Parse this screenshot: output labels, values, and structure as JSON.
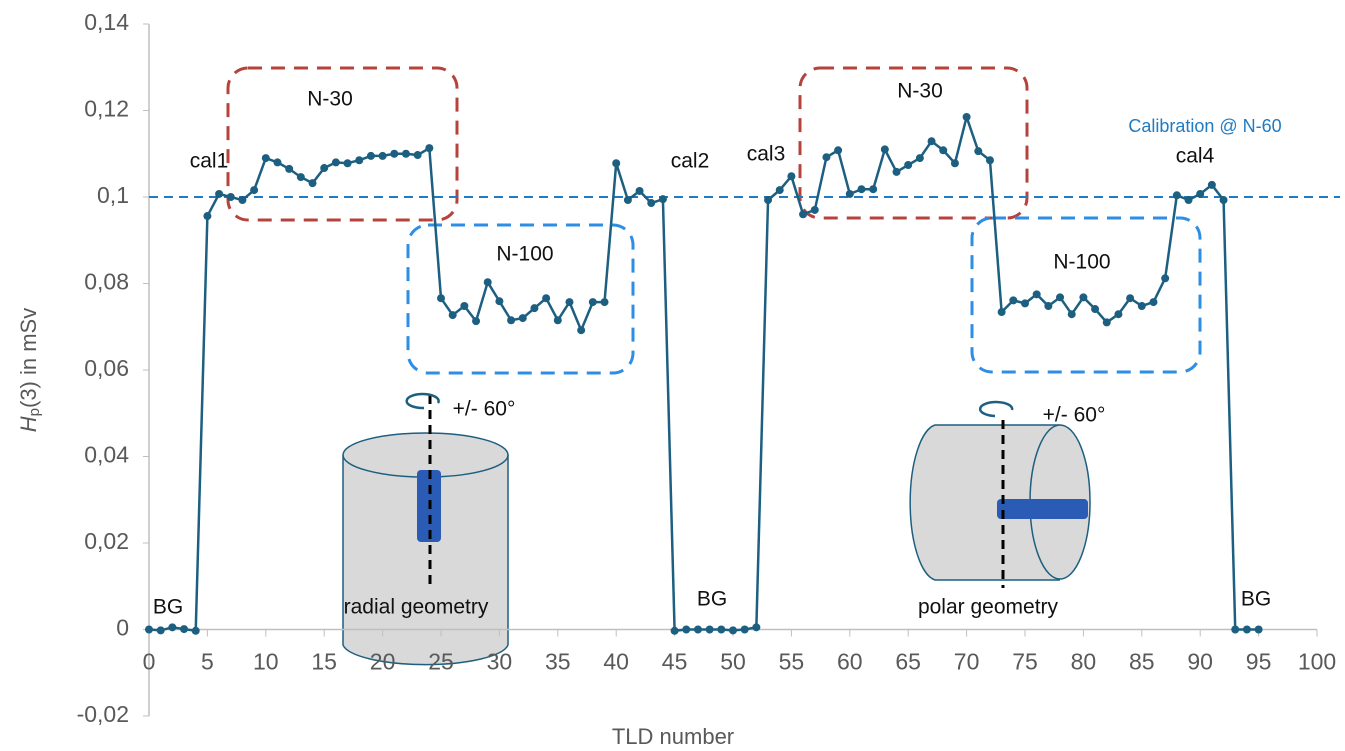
{
  "chart_data": {
    "type": "line",
    "xlabel": "TLD number",
    "ylabel_symbol": "H",
    "ylabel_subscript": "p",
    "ylabel": "(3) in mSv",
    "xlim": [
      0,
      100
    ],
    "xticks": [
      0,
      5,
      10,
      15,
      20,
      25,
      30,
      35,
      40,
      45,
      50,
      55,
      60,
      65,
      70,
      75,
      80,
      85,
      90,
      95,
      100
    ],
    "ylim": [
      -0.02,
      0.14
    ],
    "yticks": [
      {
        "value": -0.02,
        "label": "-0,02"
      },
      0,
      {
        "value": 0.02,
        "label": "0,02"
      },
      {
        "value": 0.04,
        "label": "0,04"
      },
      {
        "value": 0.06,
        "label": "0,06"
      },
      {
        "value": 0.08,
        "label": "0,08"
      },
      {
        "value": 0.1,
        "label": "0,1"
      },
      {
        "value": 0.12,
        "label": "0,12"
      },
      {
        "value": 0.14,
        "label": "0,14"
      }
    ],
    "grid": false,
    "series": [
      {
        "color": "#1d5f80",
        "x": [
          0,
          1,
          2,
          3,
          4,
          5,
          6,
          7,
          8,
          9,
          10,
          11,
          12,
          13,
          14,
          15,
          16,
          17,
          18,
          19,
          20,
          21,
          22,
          23,
          24,
          25,
          26,
          27,
          28,
          29,
          30,
          31,
          32,
          33,
          34,
          35,
          36,
          37,
          38,
          39,
          40,
          41,
          42,
          43,
          44,
          45,
          46,
          47,
          48,
          49,
          50,
          51,
          52,
          53,
          54,
          55,
          56,
          57,
          58,
          59,
          60,
          61,
          62,
          63,
          64,
          65,
          66,
          67,
          68,
          69,
          70,
          71,
          72,
          73,
          74,
          75,
          76,
          77,
          78,
          79,
          80,
          81,
          82,
          83,
          84,
          85,
          86,
          87,
          88,
          89,
          90,
          91,
          92,
          93,
          94,
          95
        ],
        "values": [
          0,
          -0.0002,
          0.0005,
          0.0001,
          -0.0003,
          0.0956,
          0.1007,
          0.1,
          0.0993,
          0.1016,
          0.109,
          0.108,
          0.1065,
          0.1046,
          0.1032,
          0.1067,
          0.108,
          0.1078,
          0.1085,
          0.1095,
          0.1095,
          0.11,
          0.11,
          0.1097,
          0.1113,
          0.0766,
          0.0727,
          0.0748,
          0.0713,
          0.0803,
          0.0759,
          0.0715,
          0.072,
          0.0743,
          0.0766,
          0.0715,
          0.0757,
          0.0692,
          0.0757,
          0.0757,
          0.1078,
          0.0993,
          0.1014,
          0.0986,
          0.0995,
          -0.0003,
          0,
          0,
          0,
          0,
          -0.0002,
          0,
          0.0005,
          0.0993,
          0.1016,
          0.1048,
          0.096,
          0.097,
          0.1092,
          0.1108,
          0.1007,
          0.1018,
          0.1018,
          0.111,
          0.1058,
          0.1074,
          0.109,
          0.1129,
          0.1108,
          0.1078,
          0.1185,
          0.1106,
          0.1085,
          0.0734,
          0.0761,
          0.0754,
          0.0775,
          0.0748,
          0.0768,
          0.0729,
          0.0768,
          0.0741,
          0.071,
          0.0729,
          0.0766,
          0.0748,
          0.0757,
          0.0812,
          0.1004,
          0.0993,
          0.1007,
          0.1028,
          0.0993,
          0,
          0,
          0
        ]
      }
    ],
    "reference_line": {
      "value": 0.1,
      "label": "Calibration @ N-60",
      "color": "#1e7bc4"
    },
    "annotations": [
      "BG",
      "cal1",
      "N-30",
      "N-100",
      "cal2",
      "BG",
      "cal3",
      "N-30",
      "cal4",
      "N-100",
      "BG",
      "+/- 60°",
      "+/- 60°",
      "radial geometry",
      "polar geometry"
    ]
  }
}
